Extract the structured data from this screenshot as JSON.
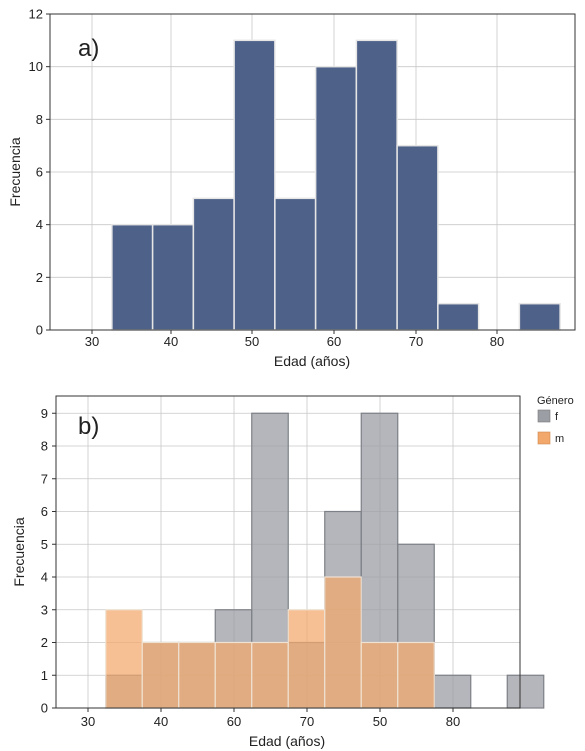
{
  "chart_data": [
    {
      "type": "bar",
      "panel_label": "a)",
      "xlabel": "Edad (años)",
      "ylabel": "Frecuencia",
      "xlim": [
        25,
        90
      ],
      "ylim": [
        0,
        12
      ],
      "x_ticks": [
        "30",
        "40",
        "50",
        "60",
        "70",
        "80"
      ],
      "y_ticks": [
        "0",
        "2",
        "4",
        "6",
        "8",
        "10",
        "12"
      ],
      "grid": true,
      "bin_width": 5,
      "bins": [
        {
          "x0": 32.5,
          "value": 4
        },
        {
          "x0": 37.5,
          "value": 4
        },
        {
          "x0": 42.5,
          "value": 5
        },
        {
          "x0": 47.5,
          "value": 11
        },
        {
          "x0": 52.5,
          "value": 5
        },
        {
          "x0": 57.5,
          "value": 10
        },
        {
          "x0": 62.5,
          "value": 11
        },
        {
          "x0": 67.5,
          "value": 7
        },
        {
          "x0": 72.5,
          "value": 1
        },
        {
          "x0": 77.5,
          "value": 0
        },
        {
          "x0": 82.5,
          "value": 1
        }
      ],
      "color": "#4e6289"
    },
    {
      "type": "bar",
      "panel_label": "b)",
      "xlabel": "Edad (años)",
      "ylabel": "Frecuencia",
      "xlim": [
        25,
        90
      ],
      "ylim": [
        0,
        9.5
      ],
      "x_ticks": [
        "30",
        "40",
        "60",
        "70",
        "50",
        "80"
      ],
      "y_ticks": [
        "0",
        "1",
        "2",
        "3",
        "4",
        "5",
        "6",
        "7",
        "8",
        "9"
      ],
      "grid": true,
      "bin_width": 5,
      "legend_title": "Género",
      "legend_position": "top-right",
      "series": [
        {
          "name": "f",
          "color": "#9b9ea4",
          "bins": [
            {
              "x0": 32.5,
              "value": 1
            },
            {
              "x0": 37.5,
              "value": 2
            },
            {
              "x0": 42.5,
              "value": 2
            },
            {
              "x0": 47.5,
              "value": 3
            },
            {
              "x0": 52.5,
              "value": 9
            },
            {
              "x0": 57.5,
              "value": 2
            },
            {
              "x0": 62.5,
              "value": 6
            },
            {
              "x0": 67.5,
              "value": 9
            },
            {
              "x0": 72.5,
              "value": 5
            },
            {
              "x0": 77.5,
              "value": 1
            },
            {
              "x0": 82.5,
              "value": 0
            },
            {
              "x0": 87.5,
              "value": 1
            }
          ]
        },
        {
          "name": "m",
          "color": "#f3a86b",
          "bins": [
            {
              "x0": 32.5,
              "value": 3
            },
            {
              "x0": 37.5,
              "value": 2
            },
            {
              "x0": 42.5,
              "value": 2
            },
            {
              "x0": 47.5,
              "value": 2
            },
            {
              "x0": 52.5,
              "value": 2
            },
            {
              "x0": 57.5,
              "value": 3
            },
            {
              "x0": 62.5,
              "value": 4
            },
            {
              "x0": 67.5,
              "value": 2
            },
            {
              "x0": 72.5,
              "value": 2
            }
          ]
        }
      ]
    }
  ]
}
